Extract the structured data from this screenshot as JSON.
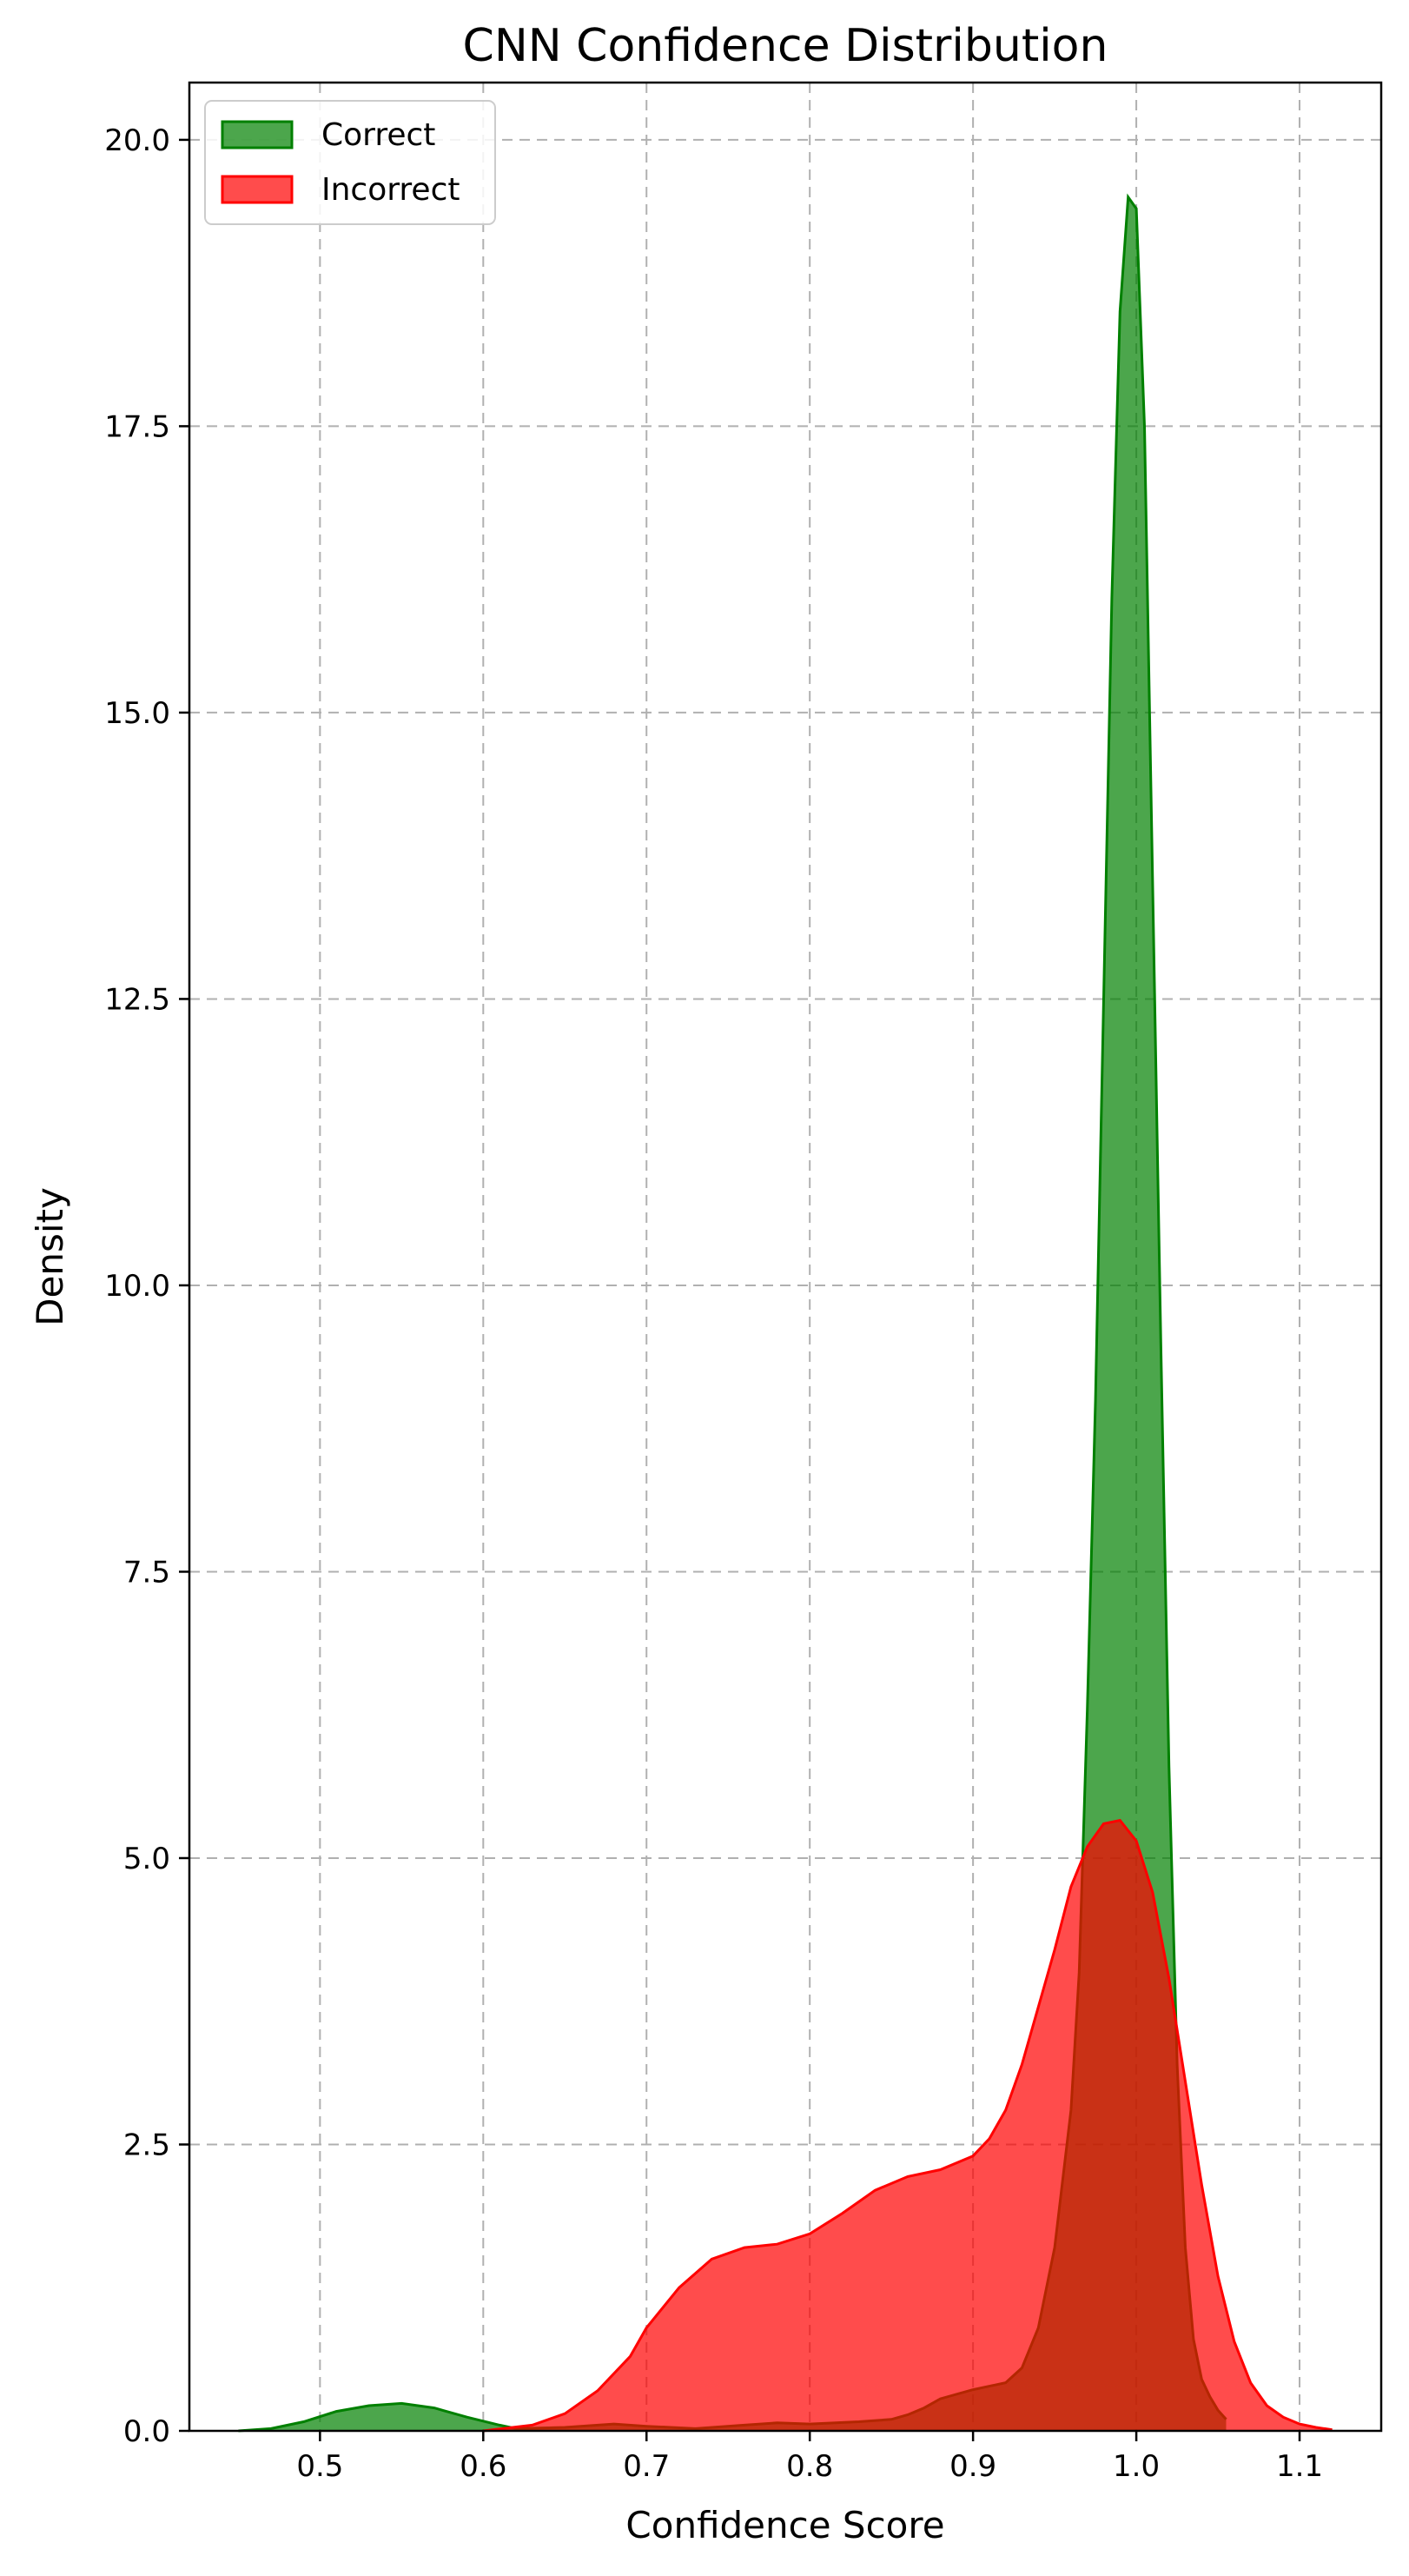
{
  "chart_data": {
    "type": "area",
    "title": "CNN Confidence Distribution",
    "xlabel": "Confidence Score",
    "ylabel": "Density",
    "xlim": [
      0.42,
      1.15
    ],
    "ylim": [
      0,
      20.5
    ],
    "xticks": [
      0.5,
      0.6,
      0.7,
      0.8,
      0.9,
      1.0,
      1.1
    ],
    "xtick_labels": [
      "0.5",
      "0.6",
      "0.7",
      "0.8",
      "0.9",
      "1.0",
      "1.1"
    ],
    "yticks": [
      0,
      2.5,
      5,
      7.5,
      10,
      12.5,
      15,
      17.5,
      20
    ],
    "ytick_labels": [
      "0.0",
      "2.5",
      "5.0",
      "7.5",
      "10.0",
      "12.5",
      "15.0",
      "17.5",
      "20.0"
    ],
    "grid": true,
    "legend_position": "top-left",
    "series": [
      {
        "name": "Correct",
        "color": "#008000",
        "fill_color": "#008000",
        "x": [
          0.45,
          0.47,
          0.49,
          0.51,
          0.53,
          0.55,
          0.57,
          0.59,
          0.61,
          0.62,
          0.65,
          0.68,
          0.7,
          0.73,
          0.76,
          0.78,
          0.8,
          0.83,
          0.85,
          0.86,
          0.87,
          0.88,
          0.9,
          0.92,
          0.93,
          0.94,
          0.95,
          0.96,
          0.965,
          0.97,
          0.975,
          0.98,
          0.985,
          0.99,
          0.995,
          1.0,
          1.005,
          1.01,
          1.015,
          1.02,
          1.025,
          1.03,
          1.035,
          1.04,
          1.045,
          1.05,
          1.055
        ],
        "values": [
          0.0,
          0.02,
          0.08,
          0.17,
          0.22,
          0.24,
          0.2,
          0.12,
          0.05,
          0.02,
          0.03,
          0.06,
          0.04,
          0.02,
          0.05,
          0.07,
          0.06,
          0.08,
          0.1,
          0.14,
          0.2,
          0.28,
          0.36,
          0.42,
          0.55,
          0.9,
          1.6,
          2.8,
          4.0,
          6.3,
          9.0,
          12.5,
          16.0,
          18.5,
          19.5,
          19.4,
          17.5,
          13.5,
          9.5,
          5.8,
          3.2,
          1.6,
          0.8,
          0.45,
          0.3,
          0.18,
          0.1
        ]
      },
      {
        "name": "Incorrect",
        "color": "#ff0000",
        "fill_color": "#ff0000",
        "x": [
          0.6,
          0.63,
          0.65,
          0.67,
          0.69,
          0.7,
          0.72,
          0.74,
          0.76,
          0.78,
          0.8,
          0.82,
          0.84,
          0.86,
          0.88,
          0.9,
          0.91,
          0.92,
          0.93,
          0.94,
          0.95,
          0.96,
          0.97,
          0.98,
          0.99,
          1.0,
          1.01,
          1.02,
          1.03,
          1.04,
          1.05,
          1.06,
          1.07,
          1.08,
          1.09,
          1.1,
          1.11,
          1.12
        ],
        "values": [
          0.0,
          0.05,
          0.15,
          0.35,
          0.65,
          0.9,
          1.25,
          1.5,
          1.6,
          1.63,
          1.72,
          1.9,
          2.1,
          2.22,
          2.28,
          2.4,
          2.55,
          2.8,
          3.2,
          3.7,
          4.2,
          4.75,
          5.1,
          5.3,
          5.33,
          5.15,
          4.7,
          3.95,
          3.05,
          2.15,
          1.35,
          0.78,
          0.42,
          0.22,
          0.12,
          0.06,
          0.03,
          0.01
        ]
      }
    ]
  }
}
